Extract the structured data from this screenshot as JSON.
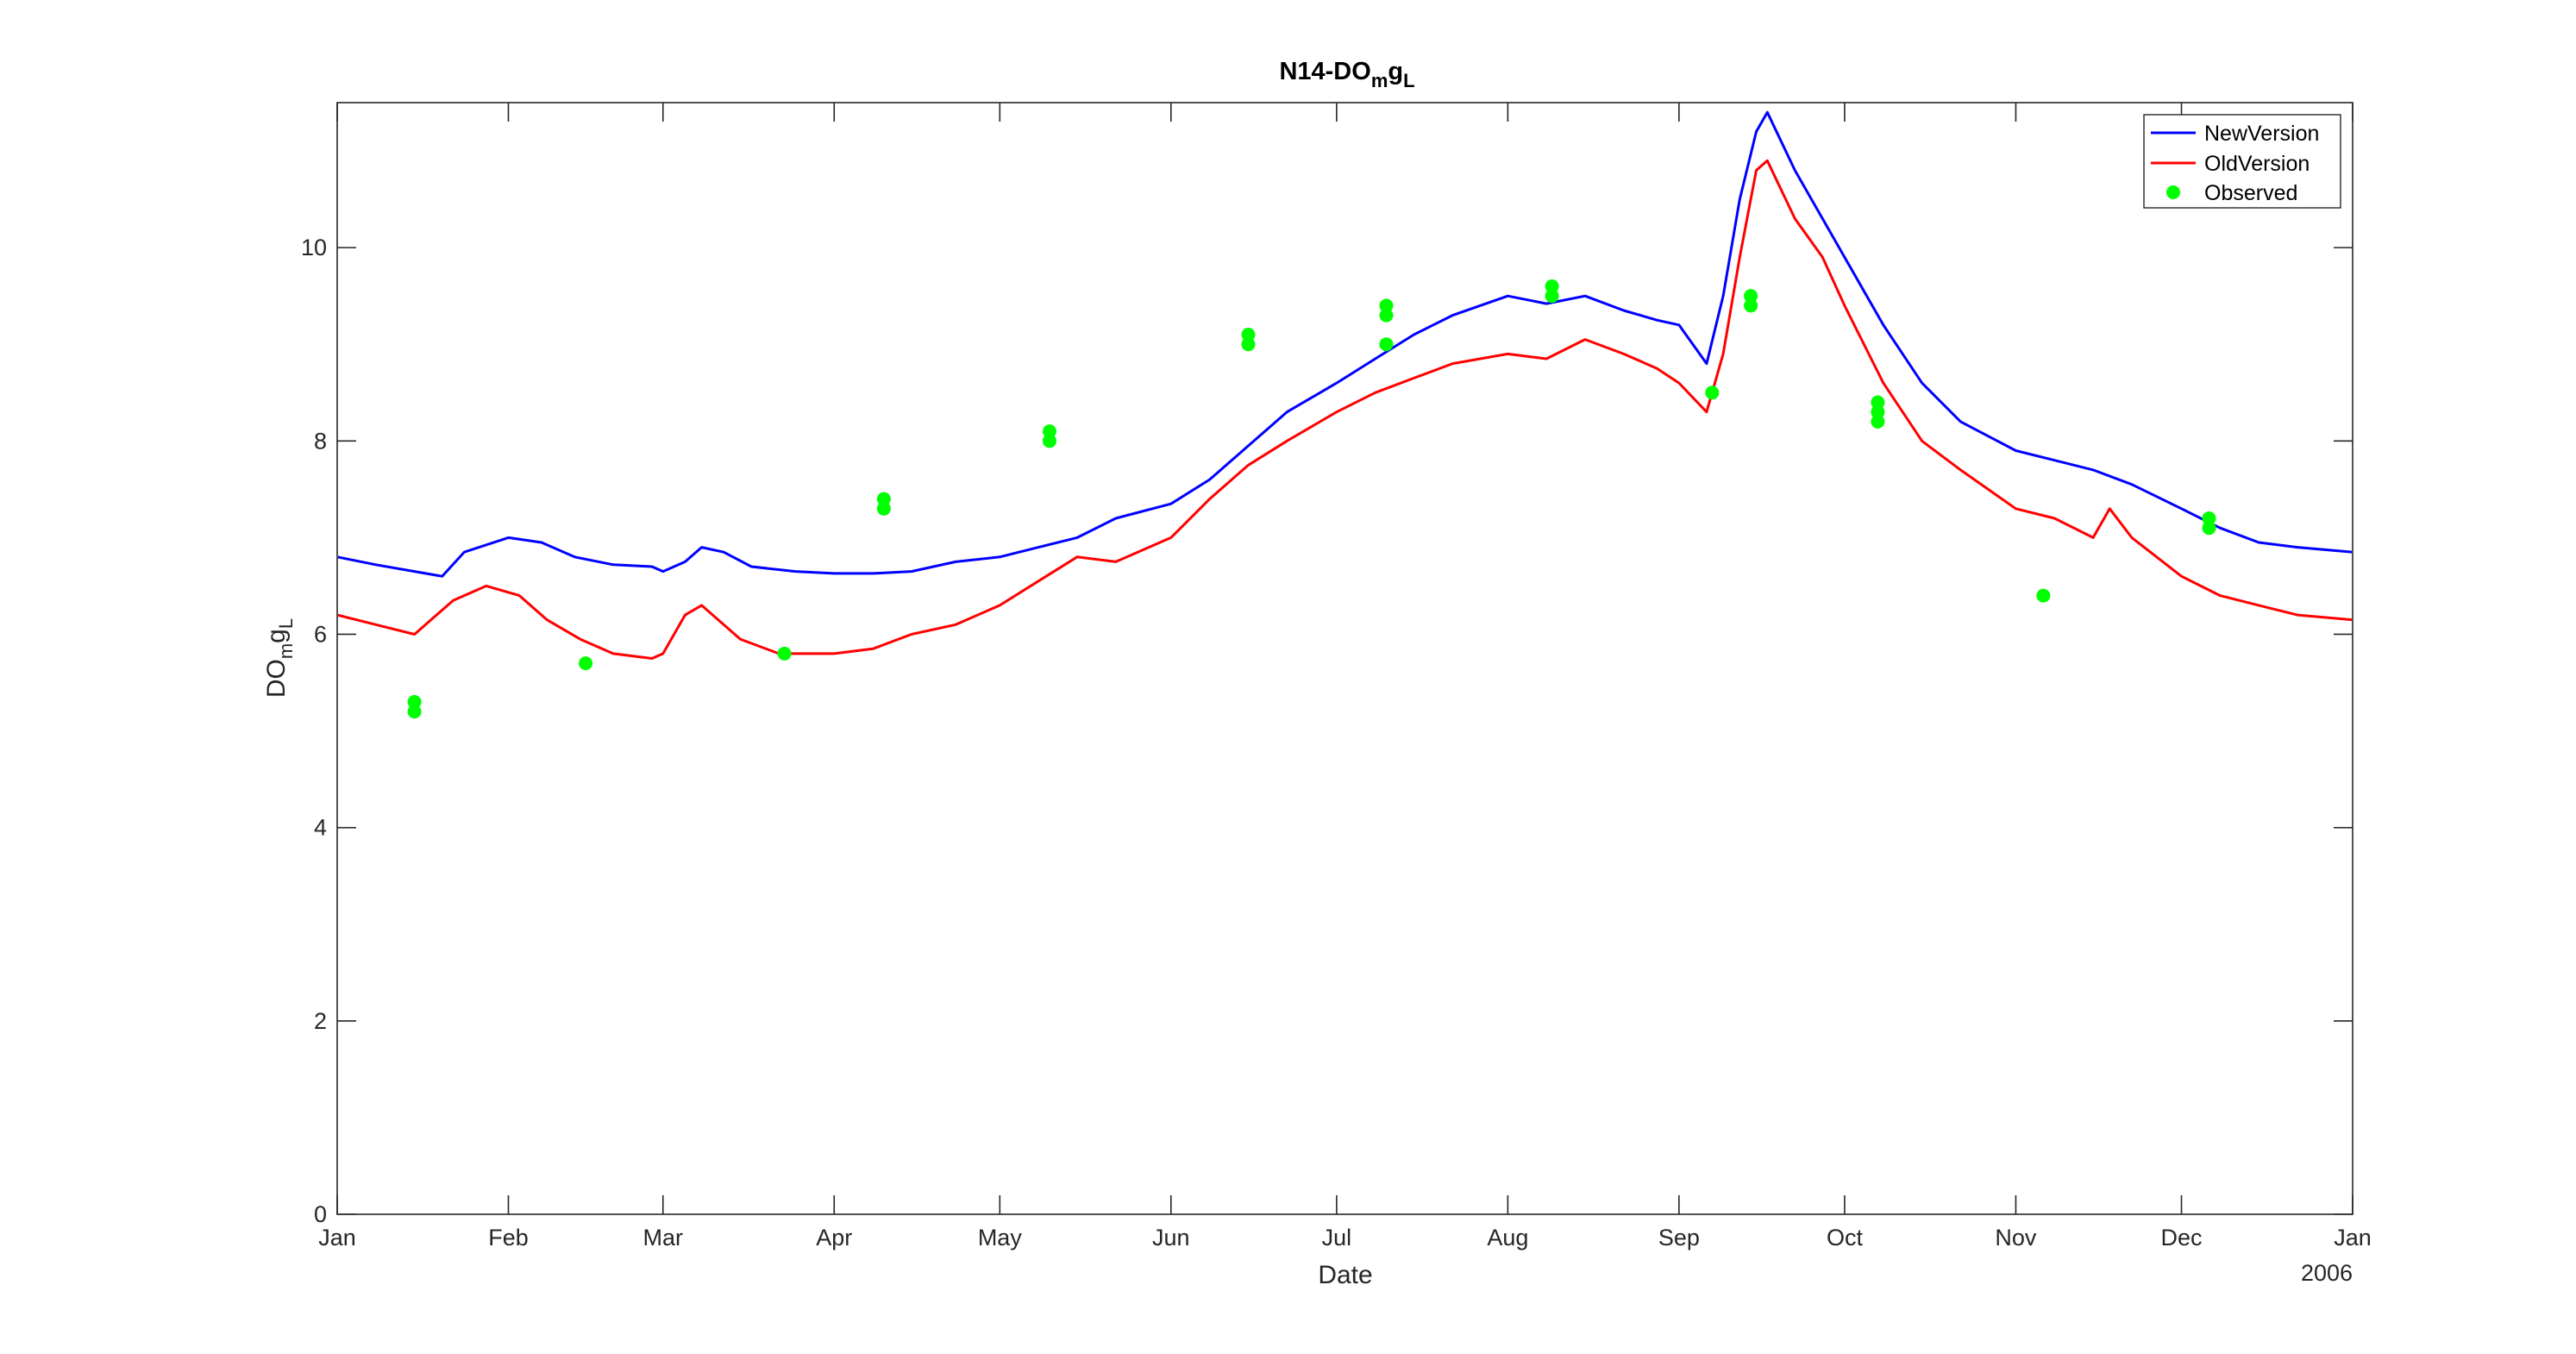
{
  "chart_data": {
    "type": "line",
    "title": {
      "main": "N14-DO",
      "sub": "m",
      "mid": "g",
      "sub2": "L"
    },
    "xlabel": "Date",
    "ylabel": {
      "main": "DO",
      "sub": "m",
      "mid": "g",
      "sub2": "L"
    },
    "year_label": "2006",
    "xlim": [
      "2006-01-01",
      "2007-01-01"
    ],
    "ylim": [
      0,
      11.5
    ],
    "y_ticks": [
      "0",
      "2",
      "4",
      "6",
      "8",
      "10"
    ],
    "x_ticks": [
      {
        "label": "Jan",
        "date": "2006-01-01"
      },
      {
        "label": "Feb",
        "date": "2006-02-01"
      },
      {
        "label": "Mar",
        "date": "2006-03-01"
      },
      {
        "label": "Apr",
        "date": "2006-04-01"
      },
      {
        "label": "May",
        "date": "2006-05-01"
      },
      {
        "label": "Jun",
        "date": "2006-06-01"
      },
      {
        "label": "Jul",
        "date": "2006-07-01"
      },
      {
        "label": "Aug",
        "date": "2006-08-01"
      },
      {
        "label": "Sep",
        "date": "2006-09-01"
      },
      {
        "label": "Oct",
        "date": "2006-10-01"
      },
      {
        "label": "Nov",
        "date": "2006-11-01"
      },
      {
        "label": "Dec",
        "date": "2006-12-01"
      },
      {
        "label": "Jan",
        "date": "2007-01-01"
      }
    ],
    "grid": false,
    "legend_position": "top-right",
    "series": [
      {
        "name": "NewVersion",
        "color": "#0000ff",
        "kind": "line",
        "x": [
          "2006-01-01",
          "2006-01-08",
          "2006-01-15",
          "2006-01-20",
          "2006-01-24",
          "2006-02-01",
          "2006-02-07",
          "2006-02-13",
          "2006-02-20",
          "2006-02-27",
          "2006-03-01",
          "2006-03-05",
          "2006-03-08",
          "2006-03-12",
          "2006-03-17",
          "2006-03-25",
          "2006-04-01",
          "2006-04-08",
          "2006-04-15",
          "2006-04-23",
          "2006-05-01",
          "2006-05-08",
          "2006-05-15",
          "2006-05-22",
          "2006-06-01",
          "2006-06-08",
          "2006-06-15",
          "2006-06-22",
          "2006-07-01",
          "2006-07-08",
          "2006-07-15",
          "2006-07-22",
          "2006-08-01",
          "2006-08-08",
          "2006-08-15",
          "2006-08-22",
          "2006-08-28",
          "2006-09-01",
          "2006-09-06",
          "2006-09-09",
          "2006-09-12",
          "2006-09-15",
          "2006-09-17",
          "2006-09-22",
          "2006-09-27",
          "2006-10-01",
          "2006-10-08",
          "2006-10-15",
          "2006-10-22",
          "2006-11-01",
          "2006-11-08",
          "2006-11-15",
          "2006-11-22",
          "2006-12-01",
          "2006-12-08",
          "2006-12-15",
          "2006-12-22",
          "2007-01-01"
        ],
        "y": [
          6.8,
          6.72,
          6.65,
          6.6,
          6.85,
          7.0,
          6.95,
          6.8,
          6.72,
          6.7,
          6.65,
          6.75,
          6.9,
          6.85,
          6.7,
          6.65,
          6.63,
          6.63,
          6.65,
          6.75,
          6.8,
          6.9,
          7.0,
          7.2,
          7.35,
          7.6,
          7.95,
          8.3,
          8.6,
          8.85,
          9.1,
          9.3,
          9.5,
          9.42,
          9.5,
          9.35,
          9.25,
          9.2,
          8.8,
          9.5,
          10.5,
          11.2,
          11.4,
          10.8,
          10.3,
          9.9,
          9.2,
          8.6,
          8.2,
          7.9,
          7.8,
          7.7,
          7.55,
          7.3,
          7.1,
          6.95,
          6.9,
          6.85
        ]
      },
      {
        "name": "OldVersion",
        "color": "#ff0000",
        "kind": "line",
        "x": [
          "2006-01-01",
          "2006-01-08",
          "2006-01-15",
          "2006-01-22",
          "2006-01-28",
          "2006-02-03",
          "2006-02-08",
          "2006-02-14",
          "2006-02-20",
          "2006-02-27",
          "2006-03-01",
          "2006-03-05",
          "2006-03-08",
          "2006-03-15",
          "2006-03-22",
          "2006-04-01",
          "2006-04-08",
          "2006-04-15",
          "2006-04-23",
          "2006-05-01",
          "2006-05-08",
          "2006-05-15",
          "2006-05-22",
          "2006-06-01",
          "2006-06-08",
          "2006-06-15",
          "2006-06-22",
          "2006-07-01",
          "2006-07-08",
          "2006-07-15",
          "2006-07-22",
          "2006-08-01",
          "2006-08-08",
          "2006-08-15",
          "2006-08-22",
          "2006-08-28",
          "2006-09-01",
          "2006-09-06",
          "2006-09-09",
          "2006-09-12",
          "2006-09-15",
          "2006-09-17",
          "2006-09-22",
          "2006-09-27",
          "2006-10-01",
          "2006-10-08",
          "2006-10-15",
          "2006-10-22",
          "2006-11-01",
          "2006-11-08",
          "2006-11-15",
          "2006-11-18",
          "2006-11-22",
          "2006-12-01",
          "2006-12-08",
          "2006-12-15",
          "2006-12-22",
          "2007-01-01"
        ],
        "y": [
          6.2,
          6.1,
          6.0,
          6.35,
          6.5,
          6.4,
          6.15,
          5.95,
          5.8,
          5.75,
          5.8,
          6.2,
          6.3,
          5.95,
          5.8,
          5.8,
          5.85,
          6.0,
          6.1,
          6.3,
          6.55,
          6.8,
          6.75,
          7.0,
          7.4,
          7.75,
          8.0,
          8.3,
          8.5,
          8.65,
          8.8,
          8.9,
          8.85,
          9.05,
          8.9,
          8.75,
          8.6,
          8.3,
          8.9,
          9.9,
          10.8,
          10.9,
          10.3,
          9.9,
          9.4,
          8.6,
          8.0,
          7.7,
          7.3,
          7.2,
          7.0,
          7.3,
          7.0,
          6.6,
          6.4,
          6.3,
          6.2,
          6.15
        ]
      },
      {
        "name": "Observed",
        "color": "#00ff00",
        "kind": "scatter",
        "x": [
          "2006-01-15",
          "2006-01-15",
          "2006-02-15",
          "2006-03-23",
          "2006-04-10",
          "2006-04-10",
          "2006-05-10",
          "2006-05-10",
          "2006-06-15",
          "2006-06-15",
          "2006-07-10",
          "2006-07-10",
          "2006-07-10",
          "2006-08-09",
          "2006-08-09",
          "2006-09-07",
          "2006-09-14",
          "2006-09-14",
          "2006-10-07",
          "2006-10-07",
          "2006-10-07",
          "2006-11-06",
          "2006-12-06",
          "2006-12-06"
        ],
        "y": [
          5.3,
          5.2,
          5.7,
          5.8,
          7.4,
          7.3,
          8.1,
          8.0,
          9.1,
          9.0,
          9.4,
          9.3,
          9.0,
          9.6,
          9.5,
          8.5,
          9.5,
          9.4,
          8.4,
          8.3,
          8.2,
          6.4,
          7.2,
          7.1
        ]
      }
    ]
  }
}
